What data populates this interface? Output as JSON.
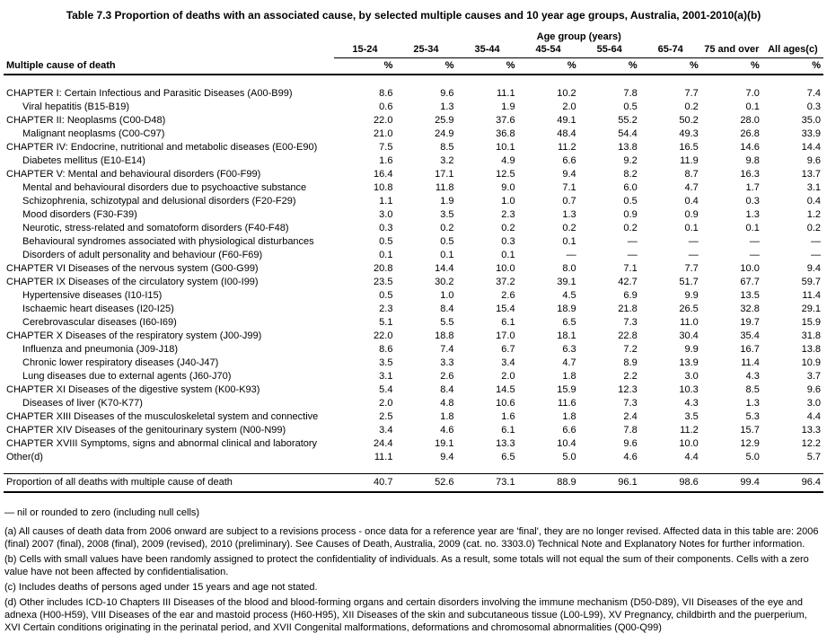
{
  "title": "Table 7.3 Proportion of deaths with an associated cause, by selected multiple causes and 10 year age groups, Australia, 2001-2010(a)(b)",
  "table": {
    "group_header": "Age group (years)",
    "row_header": "Multiple cause of death",
    "unit": "%",
    "columns": [
      "15-24",
      "25-34",
      "35-44",
      "45-54",
      "55-64",
      "65-74",
      "75 and over",
      "All ages(c)"
    ],
    "rows": [
      {
        "label": "CHAPTER I: Certain Infectious and Parasitic Diseases (A00-B99)",
        "indent": 0,
        "values": [
          "8.6",
          "9.6",
          "11.1",
          "10.2",
          "7.8",
          "7.7",
          "7.0",
          "7.4"
        ]
      },
      {
        "label": "Viral hepatitis (B15-B19)",
        "indent": 1,
        "values": [
          "0.6",
          "1.3",
          "1.9",
          "2.0",
          "0.5",
          "0.2",
          "0.1",
          "0.3"
        ]
      },
      {
        "label": "CHAPTER II: Neoplasms (C00-D48)",
        "indent": 0,
        "values": [
          "22.0",
          "25.9",
          "37.6",
          "49.1",
          "55.2",
          "50.2",
          "28.0",
          "35.0"
        ]
      },
      {
        "label": "Malignant neoplasms (C00-C97)",
        "indent": 1,
        "values": [
          "21.0",
          "24.9",
          "36.8",
          "48.4",
          "54.4",
          "49.3",
          "26.8",
          "33.9"
        ]
      },
      {
        "label": "CHAPTER IV: Endocrine, nutritional and metabolic diseases (E00-E90)",
        "indent": 0,
        "values": [
          "7.5",
          "8.5",
          "10.1",
          "11.2",
          "13.8",
          "16.5",
          "14.6",
          "14.4"
        ]
      },
      {
        "label": "Diabetes mellitus (E10-E14)",
        "indent": 1,
        "values": [
          "1.6",
          "3.2",
          "4.9",
          "6.6",
          "9.2",
          "11.9",
          "9.8",
          "9.6"
        ]
      },
      {
        "label": "CHAPTER V: Mental and behavioural disorders (F00-F99)",
        "indent": 0,
        "values": [
          "16.4",
          "17.1",
          "12.5",
          "9.4",
          "8.2",
          "8.7",
          "16.3",
          "13.7"
        ]
      },
      {
        "label": "Mental and behavioural disorders due to psychoactive substance",
        "indent": 1,
        "values": [
          "10.8",
          "11.8",
          "9.0",
          "7.1",
          "6.0",
          "4.7",
          "1.7",
          "3.1"
        ]
      },
      {
        "label": "Schizophrenia, schizotypal and delusional disorders (F20-F29)",
        "indent": 1,
        "values": [
          "1.1",
          "1.9",
          "1.0",
          "0.7",
          "0.5",
          "0.4",
          "0.3",
          "0.4"
        ]
      },
      {
        "label": "Mood disorders (F30-F39)",
        "indent": 1,
        "values": [
          "3.0",
          "3.5",
          "2.3",
          "1.3",
          "0.9",
          "0.9",
          "1.3",
          "1.2"
        ]
      },
      {
        "label": "Neurotic, stress-related and somatoform disorders (F40-F48)",
        "indent": 1,
        "values": [
          "0.3",
          "0.2",
          "0.2",
          "0.2",
          "0.2",
          "0.1",
          "0.1",
          "0.2"
        ]
      },
      {
        "label": "Behavioural syndromes associated with physiological disturbances",
        "indent": 1,
        "values": [
          "0.5",
          "0.5",
          "0.3",
          "0.1",
          "—",
          "—",
          "—",
          "—"
        ]
      },
      {
        "label": "Disorders of adult personality and behaviour (F60-F69)",
        "indent": 1,
        "values": [
          "0.1",
          "0.1",
          "0.1",
          "—",
          "—",
          "—",
          "—",
          "—"
        ]
      },
      {
        "label": "CHAPTER VI Diseases of the nervous system (G00-G99)",
        "indent": 0,
        "values": [
          "20.8",
          "14.4",
          "10.0",
          "8.0",
          "7.1",
          "7.7",
          "10.0",
          "9.4"
        ]
      },
      {
        "label": "CHAPTER IX Diseases of the circulatory system (I00-I99)",
        "indent": 0,
        "values": [
          "23.5",
          "30.2",
          "37.2",
          "39.1",
          "42.7",
          "51.7",
          "67.7",
          "59.7"
        ]
      },
      {
        "label": "Hypertensive diseases (I10-I15)",
        "indent": 1,
        "values": [
          "0.5",
          "1.0",
          "2.6",
          "4.5",
          "6.9",
          "9.9",
          "13.5",
          "11.4"
        ]
      },
      {
        "label": "Ischaemic heart diseases (I20-I25)",
        "indent": 1,
        "values": [
          "2.3",
          "8.4",
          "15.4",
          "18.9",
          "21.8",
          "26.5",
          "32.8",
          "29.1"
        ]
      },
      {
        "label": "Cerebrovascular diseases (I60-I69)",
        "indent": 1,
        "values": [
          "5.1",
          "5.5",
          "6.1",
          "6.5",
          "7.3",
          "11.0",
          "19.7",
          "15.9"
        ]
      },
      {
        "label": "CHAPTER X Diseases of the respiratory system (J00-J99)",
        "indent": 0,
        "values": [
          "22.0",
          "18.8",
          "17.0",
          "18.1",
          "22.8",
          "30.4",
          "35.4",
          "31.8"
        ]
      },
      {
        "label": "Influenza and pneumonia (J09-J18)",
        "indent": 1,
        "values": [
          "8.6",
          "7.4",
          "6.7",
          "6.3",
          "7.2",
          "9.9",
          "16.7",
          "13.8"
        ]
      },
      {
        "label": "Chronic lower respiratory diseases (J40-J47)",
        "indent": 1,
        "values": [
          "3.5",
          "3.3",
          "3.4",
          "4.7",
          "8.9",
          "13.9",
          "11.4",
          "10.9"
        ]
      },
      {
        "label": "Lung diseases due to external agents (J60-J70)",
        "indent": 1,
        "values": [
          "3.1",
          "2.6",
          "2.0",
          "1.8",
          "2.2",
          "3.0",
          "4.3",
          "3.7"
        ]
      },
      {
        "label": "CHAPTER XI Diseases of the digestive system (K00-K93)",
        "indent": 0,
        "values": [
          "5.4",
          "8.4",
          "14.5",
          "15.9",
          "12.3",
          "10.3",
          "8.5",
          "9.6"
        ]
      },
      {
        "label": "Diseases of liver (K70-K77)",
        "indent": 1,
        "values": [
          "2.0",
          "4.8",
          "10.6",
          "11.6",
          "7.3",
          "4.3",
          "1.3",
          "3.0"
        ]
      },
      {
        "label": "CHAPTER XIII Diseases of the musculoskeletal system and connective",
        "indent": 0,
        "values": [
          "2.5",
          "1.8",
          "1.6",
          "1.8",
          "2.4",
          "3.5",
          "5.3",
          "4.4"
        ]
      },
      {
        "label": "CHAPTER XIV Diseases of the genitourinary system (N00-N99)",
        "indent": 0,
        "values": [
          "3.4",
          "4.6",
          "6.1",
          "6.6",
          "7.8",
          "11.2",
          "15.7",
          "13.3"
        ]
      },
      {
        "label": "CHAPTER XVIII Symptoms, signs and abnormal clinical and laboratory",
        "indent": 0,
        "values": [
          "24.4",
          "19.1",
          "13.3",
          "10.4",
          "9.6",
          "10.0",
          "12.9",
          "12.2"
        ]
      },
      {
        "label": "Other(d)",
        "indent": 0,
        "values": [
          "11.1",
          "9.4",
          "6.5",
          "5.0",
          "4.6",
          "4.4",
          "5.0",
          "5.7"
        ]
      }
    ],
    "total_row": {
      "label": "Proportion of all deaths with multiple cause of death",
      "values": [
        "40.7",
        "52.6",
        "73.1",
        "88.9",
        "96.1",
        "98.6",
        "99.4",
        "96.4"
      ]
    }
  },
  "footnotes": [
    "— nil or rounded to zero (including null cells)",
    "(a) All causes of death data from 2006 onward are subject to a revisions process - once data for a reference year are 'final', they are no longer revised. Affected data in this table are: 2006 (final) 2007 (final), 2008 (final), 2009 (revised), 2010 (preliminary). See Causes of Death, Australia, 2009 (cat. no. 3303.0) Technical Note and Explanatory Notes for further information.",
    "(b) Cells with small values have been randomly assigned to protect the confidentiality of individuals. As a result, some totals will not equal the sum of their components. Cells with a zero value have not been affected by confidentialisation.",
    "(c) Includes deaths of persons aged under 15 years and age not stated.",
    "(d) Other includes ICD-10 Chapters III Diseases of the blood and blood-forming organs and certain disorders involving the immune mechanism (D50-D89), VII Diseases of the eye and adnexa (H00-H59), VIII Diseases of the ear and mastoid process (H60-H95), XII Diseases of the skin and subcutaneous tissue (L00-L99), XV Pregnancy, childbirth and the puerperium, XVI Certain conditions originating in the perinatal period, and XVII Congenital malformations, deformations and chromosomal abnormalities (Q00-Q99)"
  ]
}
